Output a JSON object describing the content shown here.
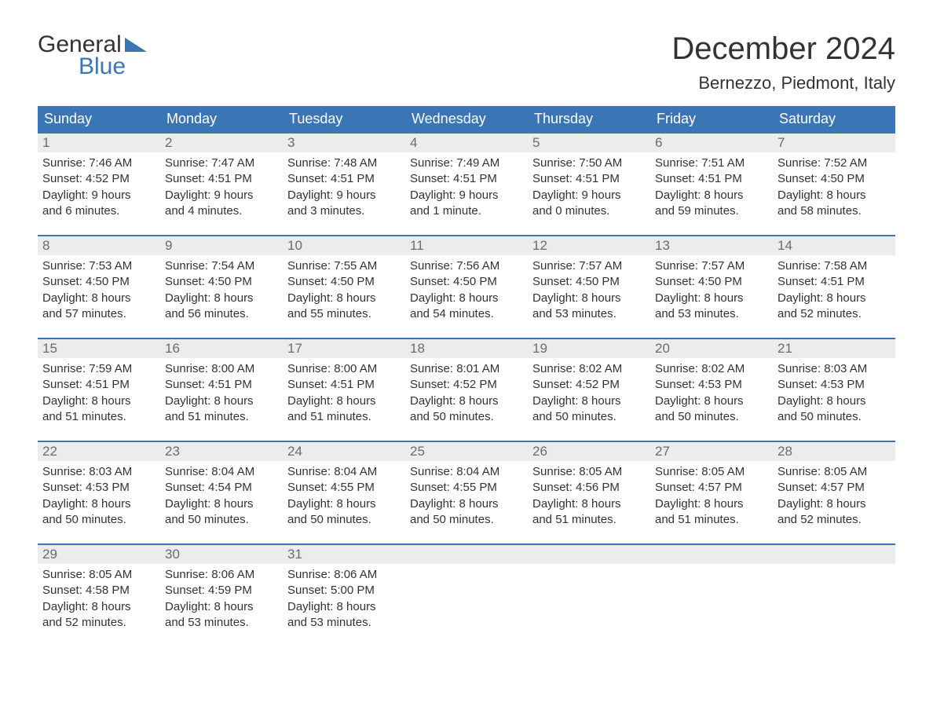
{
  "logo": {
    "word1": "General",
    "word2": "Blue",
    "accent_color": "#3a75b6"
  },
  "title": "December 2024",
  "location": "Bernezzo, Piedmont, Italy",
  "colors": {
    "header_bg": "#3a75b6",
    "header_text": "#ffffff",
    "daynum_bg": "#ececec",
    "daynum_text": "#6b6b6b",
    "body_text": "#333333",
    "page_bg": "#ffffff",
    "week_divider": "#3a75b6"
  },
  "typography": {
    "title_fontsize_pt": 30,
    "location_fontsize_pt": 16,
    "dow_fontsize_pt": 14,
    "daynum_fontsize_pt": 13,
    "body_fontsize_pt": 11
  },
  "layout": {
    "columns": 7,
    "rows": 5,
    "aspect_ratio": "1188:918"
  },
  "days_of_week": [
    "Sunday",
    "Monday",
    "Tuesday",
    "Wednesday",
    "Thursday",
    "Friday",
    "Saturday"
  ],
  "weeks": [
    [
      {
        "n": "1",
        "sunrise": "Sunrise: 7:46 AM",
        "sunset": "Sunset: 4:52 PM",
        "d1": "Daylight: 9 hours",
        "d2": "and 6 minutes."
      },
      {
        "n": "2",
        "sunrise": "Sunrise: 7:47 AM",
        "sunset": "Sunset: 4:51 PM",
        "d1": "Daylight: 9 hours",
        "d2": "and 4 minutes."
      },
      {
        "n": "3",
        "sunrise": "Sunrise: 7:48 AM",
        "sunset": "Sunset: 4:51 PM",
        "d1": "Daylight: 9 hours",
        "d2": "and 3 minutes."
      },
      {
        "n": "4",
        "sunrise": "Sunrise: 7:49 AM",
        "sunset": "Sunset: 4:51 PM",
        "d1": "Daylight: 9 hours",
        "d2": "and 1 minute."
      },
      {
        "n": "5",
        "sunrise": "Sunrise: 7:50 AM",
        "sunset": "Sunset: 4:51 PM",
        "d1": "Daylight: 9 hours",
        "d2": "and 0 minutes."
      },
      {
        "n": "6",
        "sunrise": "Sunrise: 7:51 AM",
        "sunset": "Sunset: 4:51 PM",
        "d1": "Daylight: 8 hours",
        "d2": "and 59 minutes."
      },
      {
        "n": "7",
        "sunrise": "Sunrise: 7:52 AM",
        "sunset": "Sunset: 4:50 PM",
        "d1": "Daylight: 8 hours",
        "d2": "and 58 minutes."
      }
    ],
    [
      {
        "n": "8",
        "sunrise": "Sunrise: 7:53 AM",
        "sunset": "Sunset: 4:50 PM",
        "d1": "Daylight: 8 hours",
        "d2": "and 57 minutes."
      },
      {
        "n": "9",
        "sunrise": "Sunrise: 7:54 AM",
        "sunset": "Sunset: 4:50 PM",
        "d1": "Daylight: 8 hours",
        "d2": "and 56 minutes."
      },
      {
        "n": "10",
        "sunrise": "Sunrise: 7:55 AM",
        "sunset": "Sunset: 4:50 PM",
        "d1": "Daylight: 8 hours",
        "d2": "and 55 minutes."
      },
      {
        "n": "11",
        "sunrise": "Sunrise: 7:56 AM",
        "sunset": "Sunset: 4:50 PM",
        "d1": "Daylight: 8 hours",
        "d2": "and 54 minutes."
      },
      {
        "n": "12",
        "sunrise": "Sunrise: 7:57 AM",
        "sunset": "Sunset: 4:50 PM",
        "d1": "Daylight: 8 hours",
        "d2": "and 53 minutes."
      },
      {
        "n": "13",
        "sunrise": "Sunrise: 7:57 AM",
        "sunset": "Sunset: 4:50 PM",
        "d1": "Daylight: 8 hours",
        "d2": "and 53 minutes."
      },
      {
        "n": "14",
        "sunrise": "Sunrise: 7:58 AM",
        "sunset": "Sunset: 4:51 PM",
        "d1": "Daylight: 8 hours",
        "d2": "and 52 minutes."
      }
    ],
    [
      {
        "n": "15",
        "sunrise": "Sunrise: 7:59 AM",
        "sunset": "Sunset: 4:51 PM",
        "d1": "Daylight: 8 hours",
        "d2": "and 51 minutes."
      },
      {
        "n": "16",
        "sunrise": "Sunrise: 8:00 AM",
        "sunset": "Sunset: 4:51 PM",
        "d1": "Daylight: 8 hours",
        "d2": "and 51 minutes."
      },
      {
        "n": "17",
        "sunrise": "Sunrise: 8:00 AM",
        "sunset": "Sunset: 4:51 PM",
        "d1": "Daylight: 8 hours",
        "d2": "and 51 minutes."
      },
      {
        "n": "18",
        "sunrise": "Sunrise: 8:01 AM",
        "sunset": "Sunset: 4:52 PM",
        "d1": "Daylight: 8 hours",
        "d2": "and 50 minutes."
      },
      {
        "n": "19",
        "sunrise": "Sunrise: 8:02 AM",
        "sunset": "Sunset: 4:52 PM",
        "d1": "Daylight: 8 hours",
        "d2": "and 50 minutes."
      },
      {
        "n": "20",
        "sunrise": "Sunrise: 8:02 AM",
        "sunset": "Sunset: 4:53 PM",
        "d1": "Daylight: 8 hours",
        "d2": "and 50 minutes."
      },
      {
        "n": "21",
        "sunrise": "Sunrise: 8:03 AM",
        "sunset": "Sunset: 4:53 PM",
        "d1": "Daylight: 8 hours",
        "d2": "and 50 minutes."
      }
    ],
    [
      {
        "n": "22",
        "sunrise": "Sunrise: 8:03 AM",
        "sunset": "Sunset: 4:53 PM",
        "d1": "Daylight: 8 hours",
        "d2": "and 50 minutes."
      },
      {
        "n": "23",
        "sunrise": "Sunrise: 8:04 AM",
        "sunset": "Sunset: 4:54 PM",
        "d1": "Daylight: 8 hours",
        "d2": "and 50 minutes."
      },
      {
        "n": "24",
        "sunrise": "Sunrise: 8:04 AM",
        "sunset": "Sunset: 4:55 PM",
        "d1": "Daylight: 8 hours",
        "d2": "and 50 minutes."
      },
      {
        "n": "25",
        "sunrise": "Sunrise: 8:04 AM",
        "sunset": "Sunset: 4:55 PM",
        "d1": "Daylight: 8 hours",
        "d2": "and 50 minutes."
      },
      {
        "n": "26",
        "sunrise": "Sunrise: 8:05 AM",
        "sunset": "Sunset: 4:56 PM",
        "d1": "Daylight: 8 hours",
        "d2": "and 51 minutes."
      },
      {
        "n": "27",
        "sunrise": "Sunrise: 8:05 AM",
        "sunset": "Sunset: 4:57 PM",
        "d1": "Daylight: 8 hours",
        "d2": "and 51 minutes."
      },
      {
        "n": "28",
        "sunrise": "Sunrise: 8:05 AM",
        "sunset": "Sunset: 4:57 PM",
        "d1": "Daylight: 8 hours",
        "d2": "and 52 minutes."
      }
    ],
    [
      {
        "n": "29",
        "sunrise": "Sunrise: 8:05 AM",
        "sunset": "Sunset: 4:58 PM",
        "d1": "Daylight: 8 hours",
        "d2": "and 52 minutes."
      },
      {
        "n": "30",
        "sunrise": "Sunrise: 8:06 AM",
        "sunset": "Sunset: 4:59 PM",
        "d1": "Daylight: 8 hours",
        "d2": "and 53 minutes."
      },
      {
        "n": "31",
        "sunrise": "Sunrise: 8:06 AM",
        "sunset": "Sunset: 5:00 PM",
        "d1": "Daylight: 8 hours",
        "d2": "and 53 minutes."
      },
      null,
      null,
      null,
      null
    ]
  ]
}
